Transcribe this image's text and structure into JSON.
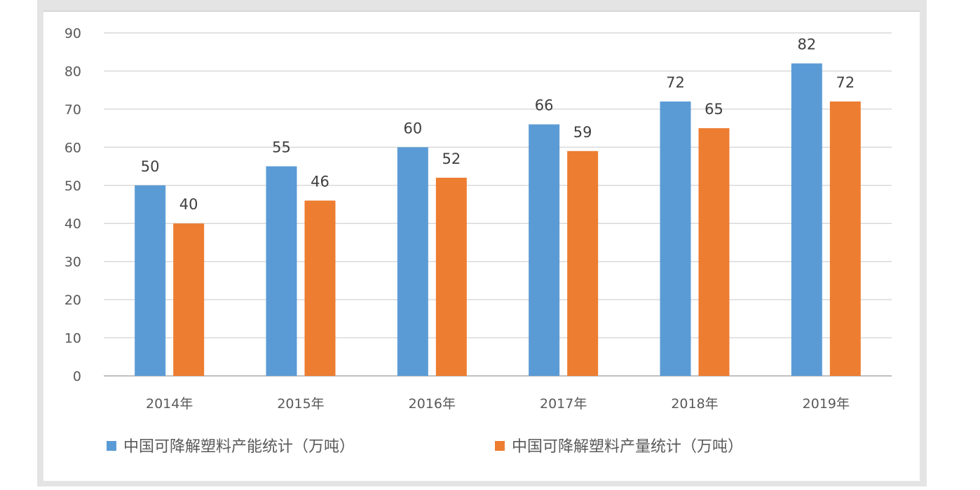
{
  "chart_data": {
    "type": "bar",
    "categories": [
      "2014年",
      "2015年",
      "2016年",
      "2017年",
      "2018年",
      "2019年"
    ],
    "series": [
      {
        "name": "中国可降解塑料产能统计（万吨）",
        "values": [
          50,
          55,
          60,
          66,
          72,
          82
        ],
        "color": "#5b9bd5"
      },
      {
        "name": "中国可降解塑料产量统计（万吨）",
        "values": [
          40,
          46,
          52,
          59,
          65,
          72
        ],
        "color": "#ed7d31"
      }
    ],
    "yticks": [
      "0",
      "10",
      "20",
      "30",
      "40",
      "50",
      "60",
      "70",
      "80",
      "90"
    ],
    "ylim": [
      0,
      90
    ],
    "grid": true,
    "legend": "bottom",
    "data_labels": true
  }
}
